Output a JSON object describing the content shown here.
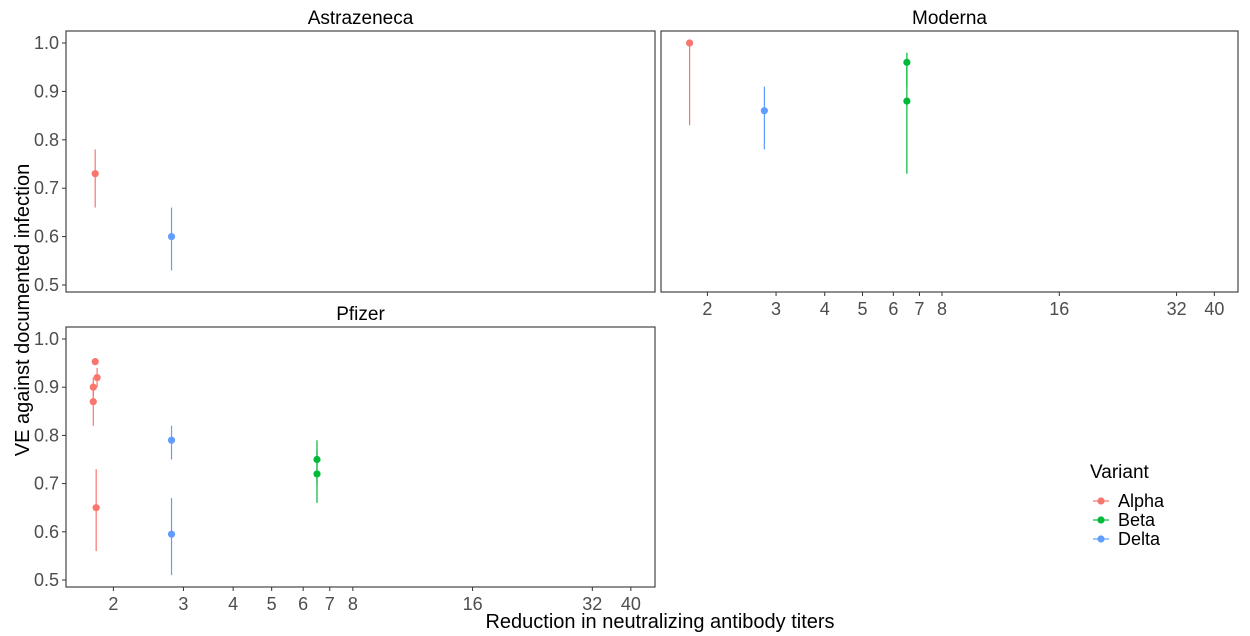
{
  "chart_data": {
    "type": "scatter",
    "subtype": "faceted point-range (log x axis)",
    "xlabel": "Reduction in neutralizing antibody titers",
    "ylabel": "VE against documented infection",
    "x_scale": "log",
    "x_ticks": [
      2,
      3,
      4,
      5,
      6,
      7,
      8,
      16,
      32,
      40
    ],
    "x_tick_labels": [
      "2",
      "3",
      "4",
      "5",
      "6",
      "7",
      "8",
      "16",
      "32",
      "40"
    ],
    "ylim": [
      0.5,
      1.0
    ],
    "y_ticks": [
      0.5,
      0.6,
      0.7,
      0.8,
      0.9,
      1.0
    ],
    "y_tick_labels": [
      "0.5",
      "0.6",
      "0.7",
      "0.8",
      "0.9",
      "1.0"
    ],
    "grid": false,
    "legend": {
      "title": "Variant",
      "position": "right",
      "entries": [
        {
          "name": "Alpha",
          "color": "#F8766D"
        },
        {
          "name": "Beta",
          "color": "#00BA38"
        },
        {
          "name": "Delta",
          "color": "#619CFF"
        }
      ]
    },
    "panels": [
      {
        "title": "Astrazeneca",
        "points": [
          {
            "variant": "Alpha",
            "x": 1.8,
            "y": 0.73,
            "low": 0.66,
            "high": 0.78
          },
          {
            "variant": "Delta",
            "x": 2.8,
            "y": 0.6,
            "low": 0.53,
            "high": 0.66
          }
        ]
      },
      {
        "title": "Moderna",
        "points": [
          {
            "variant": "Alpha",
            "x": 1.8,
            "y": 1.0,
            "low": 0.83,
            "high": 1.0
          },
          {
            "variant": "Delta",
            "x": 2.8,
            "y": 0.86,
            "low": 0.78,
            "high": 0.91
          },
          {
            "variant": "Beta",
            "x": 6.5,
            "y": 0.96,
            "low": 0.91,
            "high": 0.98
          },
          {
            "variant": "Beta",
            "x": 6.5,
            "y": 0.88,
            "low": 0.73,
            "high": 0.95
          }
        ]
      },
      {
        "title": "Pfizer",
        "points": [
          {
            "variant": "Alpha",
            "x": 1.78,
            "y": 0.9,
            "low": 0.88,
            "high": 0.92
          },
          {
            "variant": "Alpha",
            "x": 1.8,
            "y": 0.953,
            "low": 0.95,
            "high": 0.96
          },
          {
            "variant": "Alpha",
            "x": 1.82,
            "y": 0.92,
            "low": 0.9,
            "high": 0.94
          },
          {
            "variant": "Alpha",
            "x": 1.78,
            "y": 0.87,
            "low": 0.82,
            "high": 0.91
          },
          {
            "variant": "Alpha",
            "x": 1.81,
            "y": 0.65,
            "low": 0.56,
            "high": 0.73
          },
          {
            "variant": "Delta",
            "x": 2.8,
            "y": 0.79,
            "low": 0.75,
            "high": 0.82
          },
          {
            "variant": "Delta",
            "x": 2.8,
            "y": 0.595,
            "low": 0.51,
            "high": 0.67
          },
          {
            "variant": "Beta",
            "x": 6.5,
            "y": 0.75,
            "low": 0.7,
            "high": 0.79
          },
          {
            "variant": "Beta",
            "x": 6.5,
            "y": 0.72,
            "low": 0.66,
            "high": 0.77
          }
        ]
      }
    ]
  }
}
